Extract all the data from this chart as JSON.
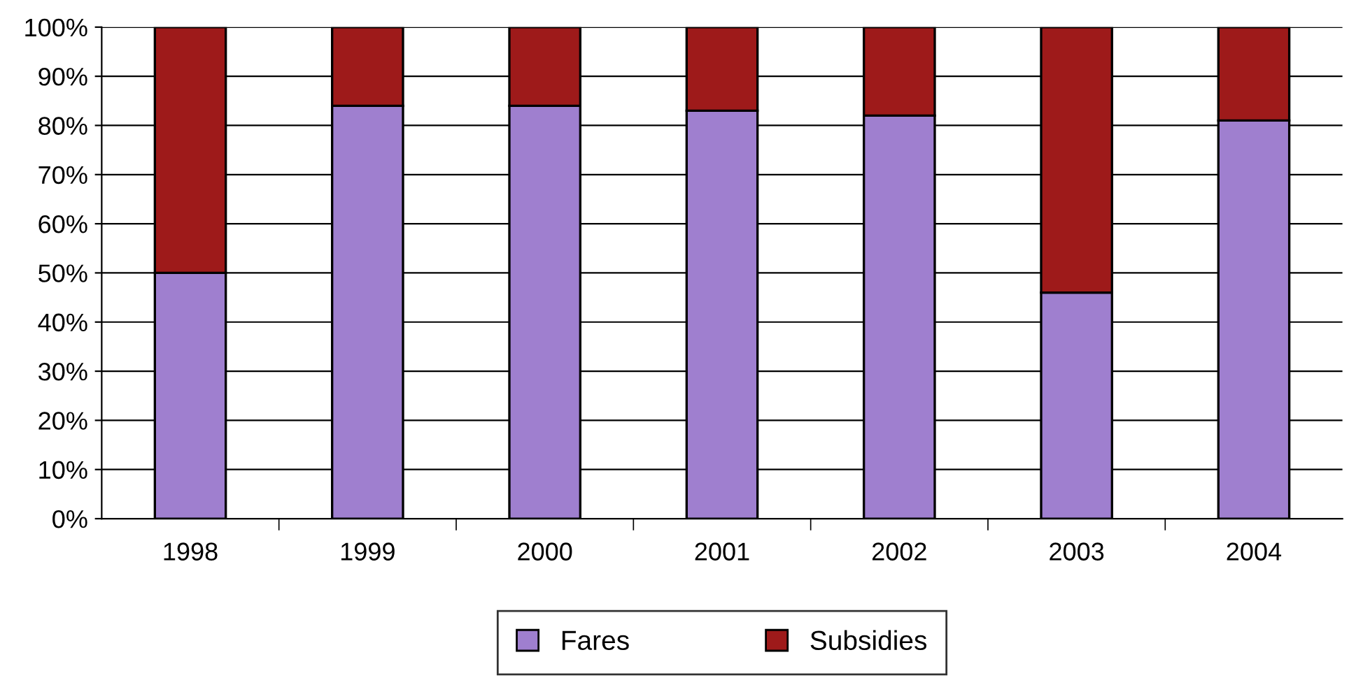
{
  "chart_data": {
    "type": "bar",
    "stacked": true,
    "categories": [
      "1998",
      "1999",
      "2000",
      "2001",
      "2002",
      "2003",
      "2004"
    ],
    "series": [
      {
        "name": "Fares",
        "color": "#9f7fcf",
        "values": [
          50,
          84,
          84,
          83,
          82,
          46,
          81
        ]
      },
      {
        "name": "Subsidies",
        "color": "#9e1a1a",
        "values": [
          50,
          16,
          16,
          17,
          18,
          54,
          19
        ]
      }
    ],
    "ylim": [
      0,
      100
    ],
    "yticks": [
      {
        "value": 0,
        "label": "0%"
      },
      {
        "value": 10,
        "label": "10%"
      },
      {
        "value": 20,
        "label": "20%"
      },
      {
        "value": 30,
        "label": "30%"
      },
      {
        "value": 40,
        "label": "40%"
      },
      {
        "value": 50,
        "label": "50%"
      },
      {
        "value": 60,
        "label": "60%"
      },
      {
        "value": 70,
        "label": "70%"
      },
      {
        "value": 80,
        "label": "80%"
      },
      {
        "value": 90,
        "label": "90%"
      },
      {
        "value": 100,
        "label": "100%"
      }
    ],
    "grid": "y",
    "legend": "bottom"
  }
}
